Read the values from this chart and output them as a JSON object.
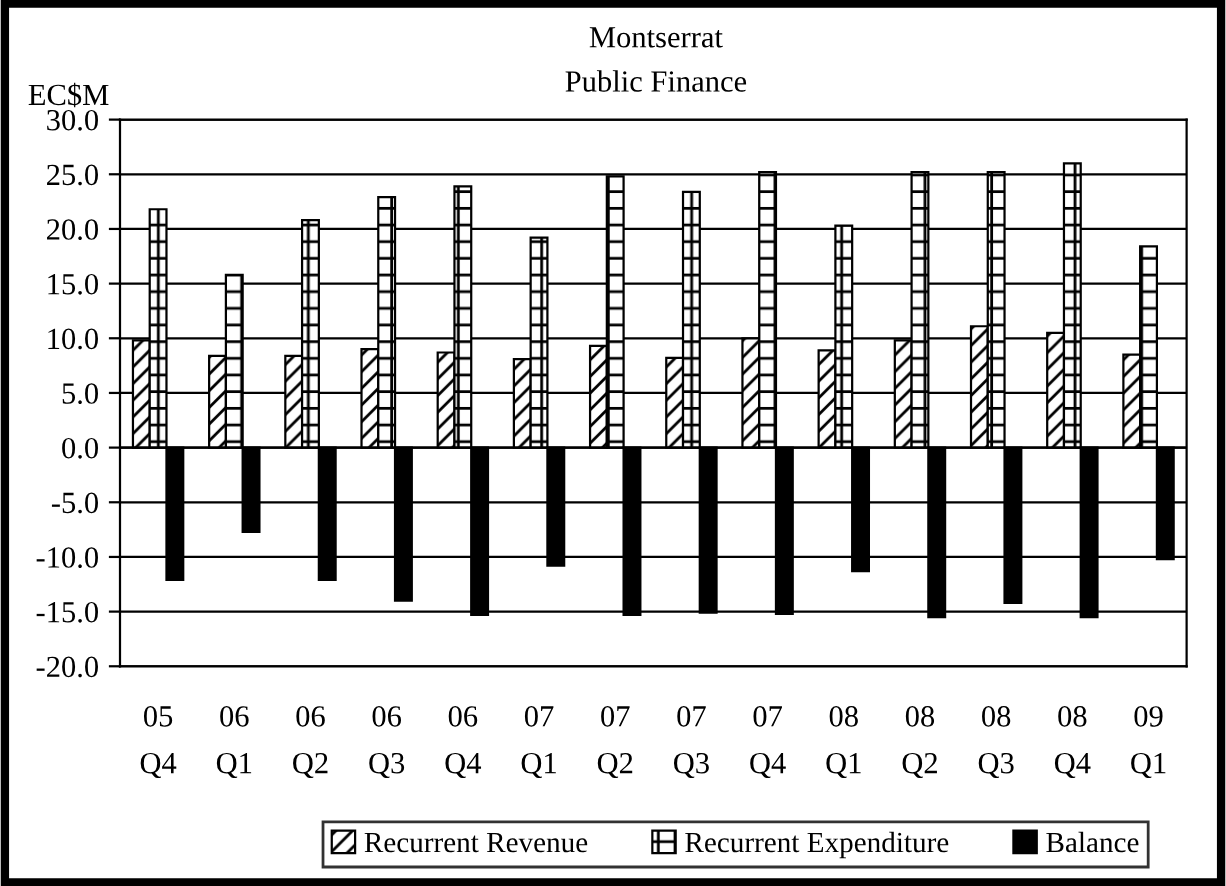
{
  "chart_data": {
    "type": "bar",
    "title": "Montserrat",
    "subtitle": "Public Finance",
    "ylabel": "EC$M",
    "categories": [
      "05\nQ4",
      "06\nQ1",
      "06\nQ2",
      "06\nQ3",
      "06\nQ4",
      "07\nQ1",
      "07\nQ2",
      "07\nQ3",
      "07\nQ4",
      "08\nQ1",
      "08\nQ2",
      "08\nQ3",
      "08\nQ4",
      "09\nQ1"
    ],
    "series": [
      {
        "name": "Recurrent Revenue",
        "color": "#000000",
        "values": [
          9.8,
          8.4,
          8.4,
          9.0,
          8.7,
          8.1,
          9.3,
          8.2,
          10.0,
          8.9,
          9.8,
          11.1,
          10.5,
          8.5
        ]
      },
      {
        "name": "Recurrent Expenditure",
        "color": "#000000",
        "values": [
          21.8,
          15.8,
          20.8,
          22.9,
          23.9,
          19.2,
          24.8,
          23.4,
          25.2,
          20.3,
          25.2,
          25.2,
          26.0,
          18.4
        ]
      },
      {
        "name": "Balance",
        "color": "#000000",
        "values": [
          -12.1,
          -7.7,
          -12.1,
          -14.0,
          -15.3,
          -10.8,
          -15.3,
          -15.1,
          -15.2,
          -11.3,
          -15.5,
          -14.2,
          -15.5,
          -10.2
        ]
      }
    ],
    "ylim": [
      -20,
      30
    ],
    "yticks": [
      {
        "value": -20,
        "label": "-20.0"
      },
      {
        "value": -15,
        "label": "-15.0"
      },
      {
        "value": -10,
        "label": "-10.0"
      },
      {
        "value": -5,
        "label": "-5.0"
      },
      {
        "value": 0,
        "label": "0.0"
      },
      {
        "value": 5,
        "label": "5.0"
      },
      {
        "value": 10,
        "label": "10.0"
      },
      {
        "value": 15,
        "label": "15.0"
      },
      {
        "value": 20,
        "label": "20.0"
      },
      {
        "value": 25,
        "label": "25.0"
      },
      {
        "value": 30,
        "label": "30.0"
      }
    ],
    "grid": "y",
    "legend": "bottom"
  }
}
